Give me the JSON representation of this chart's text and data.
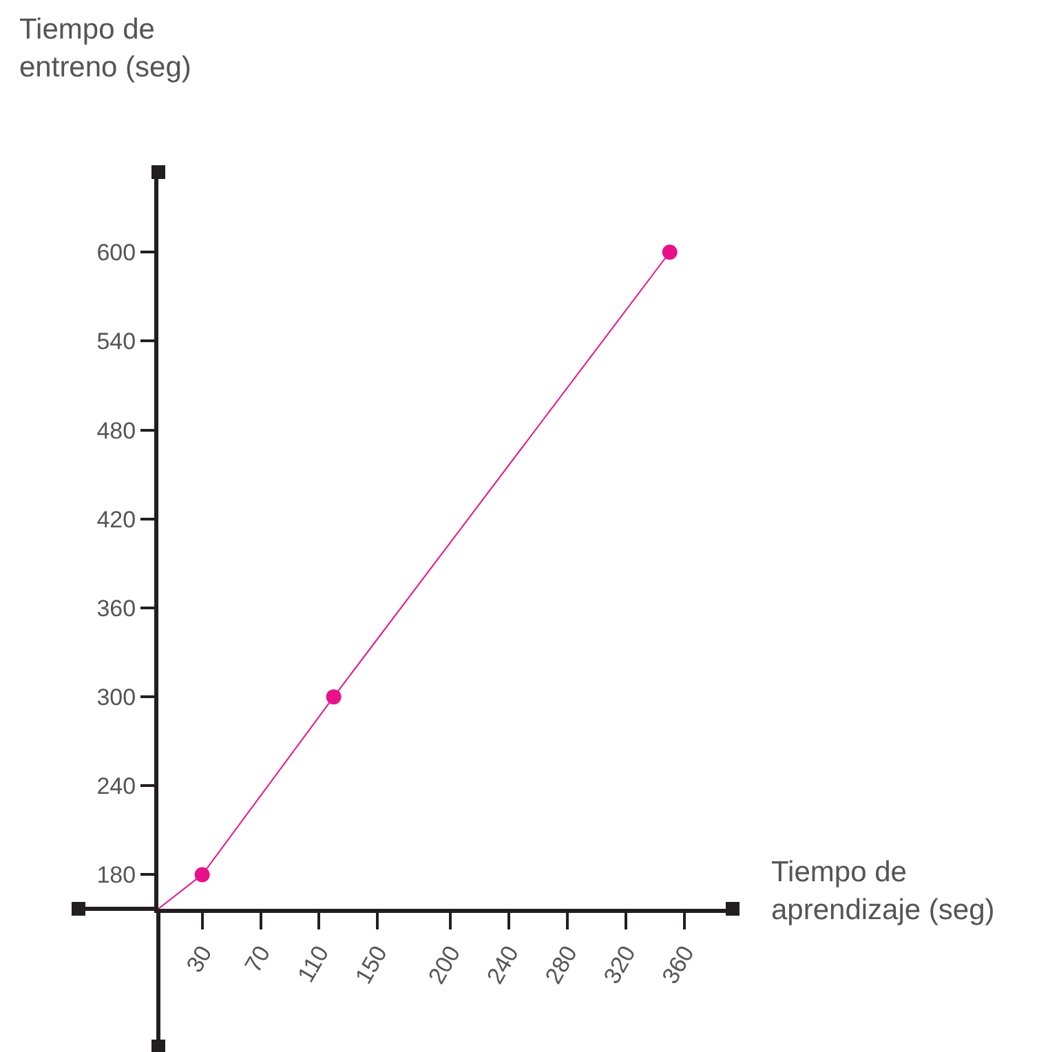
{
  "chart_data": {
    "type": "line",
    "xlabel": "Tiempo de\naprendizaje (seg)",
    "ylabel": "Tiempo de\nentreno (seg)",
    "series": [
      {
        "color": "#e8118a",
        "x": [
          0,
          30,
          120,
          350
        ],
        "values": [
          157,
          180,
          300,
          600
        ],
        "marker": "none"
      },
      {
        "type": "scatter",
        "color": "#e8118a",
        "x": [
          30,
          120,
          350
        ],
        "values": [
          180,
          300,
          600
        ],
        "marker": "circle"
      }
    ],
    "xlim": [
      0,
      393
    ],
    "ylim": [
      157,
      654
    ],
    "xticks": [
      30,
      70,
      110,
      150,
      200,
      240,
      280,
      320,
      360
    ],
    "yticks": [
      180,
      240,
      300,
      360,
      420,
      480,
      540,
      600
    ]
  }
}
